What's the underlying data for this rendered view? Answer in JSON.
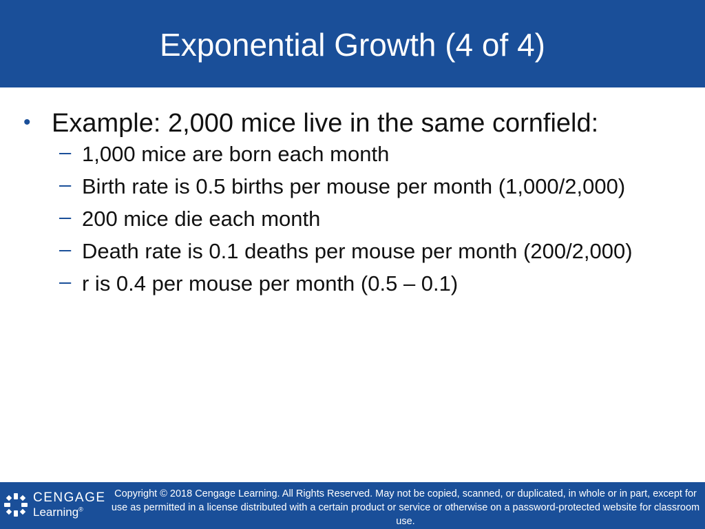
{
  "slide": {
    "title": "Exponential Growth (4 of 4)",
    "bullet": {
      "marker": "•",
      "text": "Example: 2,000 mice live in the same cornfield:"
    },
    "sub_marker": "–",
    "sub_items": [
      "1,000 mice are born each month",
      "Birth rate is 0.5 births per mouse per month (1,000/2,000)",
      "200 mice die each month",
      "Death rate is 0.1 deaths per mouse per month (200/2,000)",
      "r is 0.4 per mouse per month (0.5 – 0.1)"
    ]
  },
  "footer": {
    "logo_top": "CENGAGE",
    "logo_bottom": "Learning",
    "logo_registered": "®",
    "copyright": "Copyright © 2018 Cengage Learning. All Rights Reserved. May not be copied, scanned, or duplicated, in whole or in part, except for use as permitted in a license distributed with a certain product or service or otherwise on a password-protected website for classroom use."
  },
  "colors": {
    "header_bg": "#1a4f99",
    "footer_bg": "#1a4f99",
    "bullet": "#1a4f99",
    "text": "#111111"
  }
}
